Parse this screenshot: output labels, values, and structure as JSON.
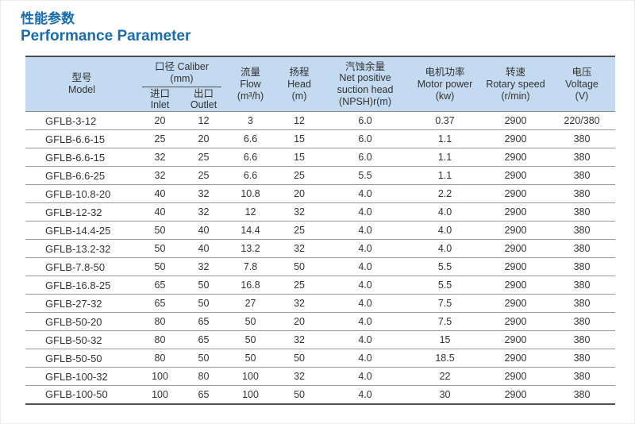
{
  "page": {
    "title_zh": "性能参数",
    "title_en": "Performance Parameter"
  },
  "colors": {
    "accent_blue": "#1a6cb0",
    "header_bg": "#c3daf0",
    "table_border_dark": "#4d4d4d",
    "row_line": "#999999",
    "text": "#333333"
  },
  "table": {
    "header": {
      "model_zh": "型号",
      "model_en": "Model",
      "caliber_zh": "口径 Caliber",
      "caliber_unit": "(mm)",
      "inlet_zh": "进口",
      "inlet_en": "Inlet",
      "outlet_zh": "出口",
      "outlet_en": "Outlet",
      "flow_zh": "流量",
      "flow_en": "Flow",
      "flow_unit": "(m³/h)",
      "head_zh": "扬程",
      "head_en": "Head",
      "head_unit": "(m)",
      "npsh_zh": "汽蚀余量",
      "npsh_en_line1": "Net positive",
      "npsh_en_line2": "suction head",
      "npsh_unit": "(NPSH)r(m)",
      "power_zh": "电机功率",
      "power_en": "Motor power",
      "power_unit": "(kw)",
      "speed_zh": "转速",
      "speed_en": "Rotary speed",
      "speed_unit": "(r/min)",
      "voltage_zh": "电压",
      "voltage_en": "Voltage",
      "voltage_unit": "(V)"
    },
    "rows": [
      {
        "model": "GFLB-3-12",
        "inlet": "20",
        "outlet": "12",
        "flow": "3",
        "head": "12",
        "npsh": "6.0",
        "power": "0.37",
        "speed": "2900",
        "voltage": "220/380"
      },
      {
        "model": "GFLB-6.6-15",
        "inlet": "25",
        "outlet": "20",
        "flow": "6.6",
        "head": "15",
        "npsh": "6.0",
        "power": "1.1",
        "speed": "2900",
        "voltage": "380"
      },
      {
        "model": "GFLB-6.6-15",
        "inlet": "32",
        "outlet": "25",
        "flow": "6.6",
        "head": "15",
        "npsh": "6.0",
        "power": "1.1",
        "speed": "2900",
        "voltage": "380"
      },
      {
        "model": "GFLB-6.6-25",
        "inlet": "32",
        "outlet": "25",
        "flow": "6.6",
        "head": "25",
        "npsh": "5.5",
        "power": "1.1",
        "speed": "2900",
        "voltage": "380"
      },
      {
        "model": "GFLB-10.8-20",
        "inlet": "40",
        "outlet": "32",
        "flow": "10.8",
        "head": "20",
        "npsh": "4.0",
        "power": "2.2",
        "speed": "2900",
        "voltage": "380"
      },
      {
        "model": "GFLB-12-32",
        "inlet": "40",
        "outlet": "32",
        "flow": "12",
        "head": "32",
        "npsh": "4.0",
        "power": "4.0",
        "speed": "2900",
        "voltage": "380"
      },
      {
        "model": "GFLB-14.4-25",
        "inlet": "50",
        "outlet": "40",
        "flow": "14.4",
        "head": "25",
        "npsh": "4.0",
        "power": "4.0",
        "speed": "2900",
        "voltage": "380"
      },
      {
        "model": "GFLB-13.2-32",
        "inlet": "50",
        "outlet": "40",
        "flow": "13.2",
        "head": "32",
        "npsh": "4.0",
        "power": "4.0",
        "speed": "2900",
        "voltage": "380"
      },
      {
        "model": "GFLB-7.8-50",
        "inlet": "50",
        "outlet": "32",
        "flow": "7.8",
        "head": "50",
        "npsh": "4.0",
        "power": "5.5",
        "speed": "2900",
        "voltage": "380"
      },
      {
        "model": "GFLB-16.8-25",
        "inlet": "65",
        "outlet": "50",
        "flow": "16.8",
        "head": "25",
        "npsh": "4.0",
        "power": "5.5",
        "speed": "2900",
        "voltage": "380"
      },
      {
        "model": "GFLB-27-32",
        "inlet": "65",
        "outlet": "50",
        "flow": "27",
        "head": "32",
        "npsh": "4.0",
        "power": "7.5",
        "speed": "2900",
        "voltage": "380"
      },
      {
        "model": "GFLB-50-20",
        "inlet": "80",
        "outlet": "65",
        "flow": "50",
        "head": "20",
        "npsh": "4.0",
        "power": "7.5",
        "speed": "2900",
        "voltage": "380"
      },
      {
        "model": "GFLB-50-32",
        "inlet": "80",
        "outlet": "65",
        "flow": "50",
        "head": "32",
        "npsh": "4.0",
        "power": "15",
        "speed": "2900",
        "voltage": "380"
      },
      {
        "model": "GFLB-50-50",
        "inlet": "80",
        "outlet": "50",
        "flow": "50",
        "head": "50",
        "npsh": "4.0",
        "power": "18.5",
        "speed": "2900",
        "voltage": "380"
      },
      {
        "model": "GFLB-100-32",
        "inlet": "100",
        "outlet": "80",
        "flow": "100",
        "head": "32",
        "npsh": "4.0",
        "power": "22",
        "speed": "2900",
        "voltage": "380"
      },
      {
        "model": "GFLB-100-50",
        "inlet": "100",
        "outlet": "65",
        "flow": "100",
        "head": "50",
        "npsh": "4.0",
        "power": "30",
        "speed": "2900",
        "voltage": "380"
      }
    ]
  }
}
